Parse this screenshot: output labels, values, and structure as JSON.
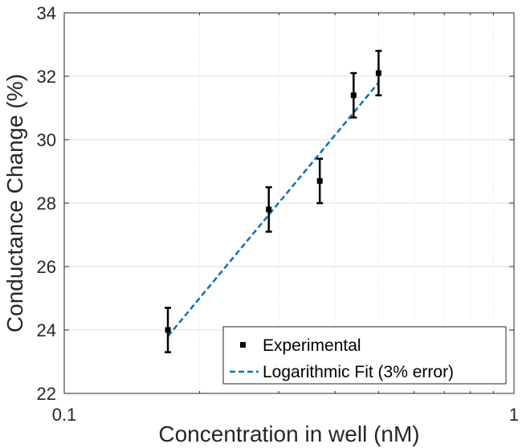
{
  "chart_data": {
    "type": "scatter",
    "title": "",
    "xlabel": "Concentration in well (nM)",
    "ylabel": "Conductance Change (%)",
    "xscale": "log",
    "xlim": [
      0.1,
      1
    ],
    "ylim": [
      22,
      34
    ],
    "xticks": [
      {
        "value": 0.1,
        "label": "0.1"
      },
      {
        "value": 1,
        "label": "1"
      }
    ],
    "yticks": [
      {
        "value": 22,
        "label": "22"
      },
      {
        "value": 24,
        "label": "24"
      },
      {
        "value": 26,
        "label": "26"
      },
      {
        "value": 28,
        "label": "28"
      },
      {
        "value": 30,
        "label": "30"
      },
      {
        "value": 32,
        "label": "32"
      },
      {
        "value": 34,
        "label": "34"
      }
    ],
    "grid": true,
    "legend_position": "bottom-right",
    "series": [
      {
        "name": "Experimental",
        "kind": "errorbar",
        "color": "#000000",
        "x": [
          0.17,
          0.285,
          0.37,
          0.44,
          0.5
        ],
        "y": [
          24.0,
          27.8,
          28.7,
          31.4,
          32.1
        ],
        "yerr": [
          0.7,
          0.7,
          0.7,
          0.7,
          0.7
        ]
      },
      {
        "name": "Logarithmic Fit (3% error)",
        "kind": "line",
        "style": "dashed",
        "color": "#0072BD",
        "x": [
          0.17,
          0.5
        ],
        "y": [
          23.8,
          31.8
        ]
      }
    ]
  }
}
